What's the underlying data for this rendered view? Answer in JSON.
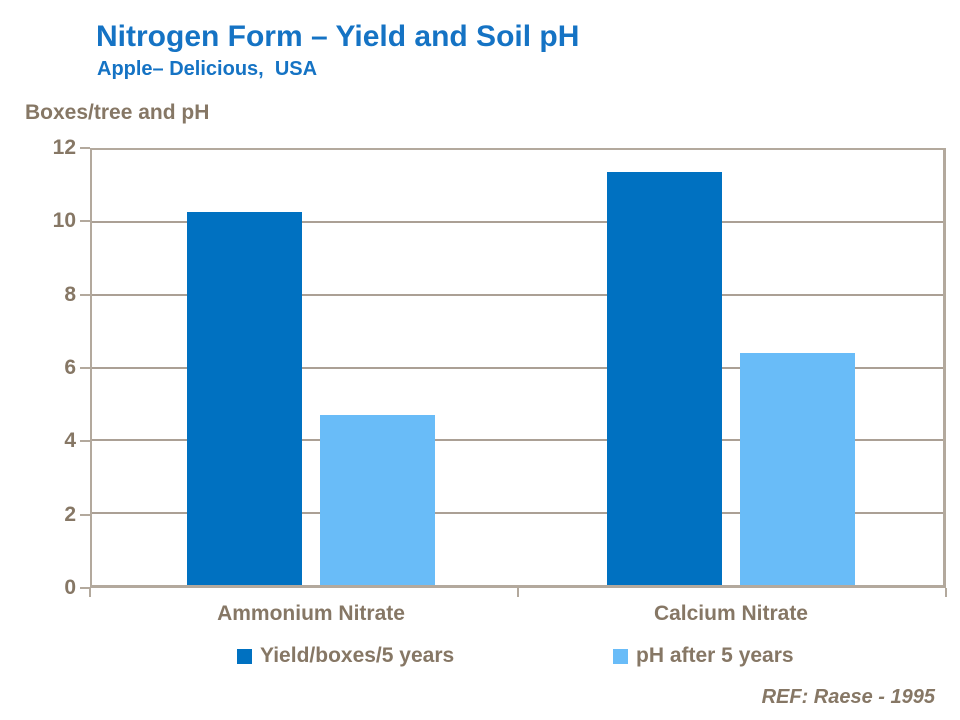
{
  "header": {
    "title": "Nitrogen Form – Yield and Soil pH",
    "subtitle": "Apple– Delicious,  USA"
  },
  "axis_title": "Boxes/tree and pH",
  "footer": {
    "ref": "REF: Raese - 1995"
  },
  "colors": {
    "title_blue": "#1573C4",
    "yield_bar_blue": "#0071C1",
    "ph_bar_blue": "#69BCF8",
    "text_brown": "#867765",
    "gridline_tan": "#ABA095",
    "frame_tan": "#B3A99D",
    "background": "#FFFFFF"
  },
  "chart_data": {
    "type": "bar",
    "title": "Nitrogen Form – Yield and Soil pH",
    "subtitle": "Apple– Delicious, USA",
    "ylabel": "Boxes/tree and pH",
    "categories": [
      "Ammonium Nitrate",
      "Calcium Nitrate"
    ],
    "series": [
      {
        "name": "Yield/boxes/5 years",
        "color": "#0071C1",
        "values": [
          10.3,
          11.4
        ]
      },
      {
        "name": "pH after 5 years",
        "color": "#69BCF8",
        "values": [
          4.7,
          6.4
        ]
      }
    ],
    "ylim": [
      0,
      12
    ],
    "yticks": [
      0,
      2,
      4,
      6,
      8,
      10,
      12
    ],
    "grid": true,
    "legend_position": "bottom",
    "annotation": "REF: Raese - 1995"
  }
}
